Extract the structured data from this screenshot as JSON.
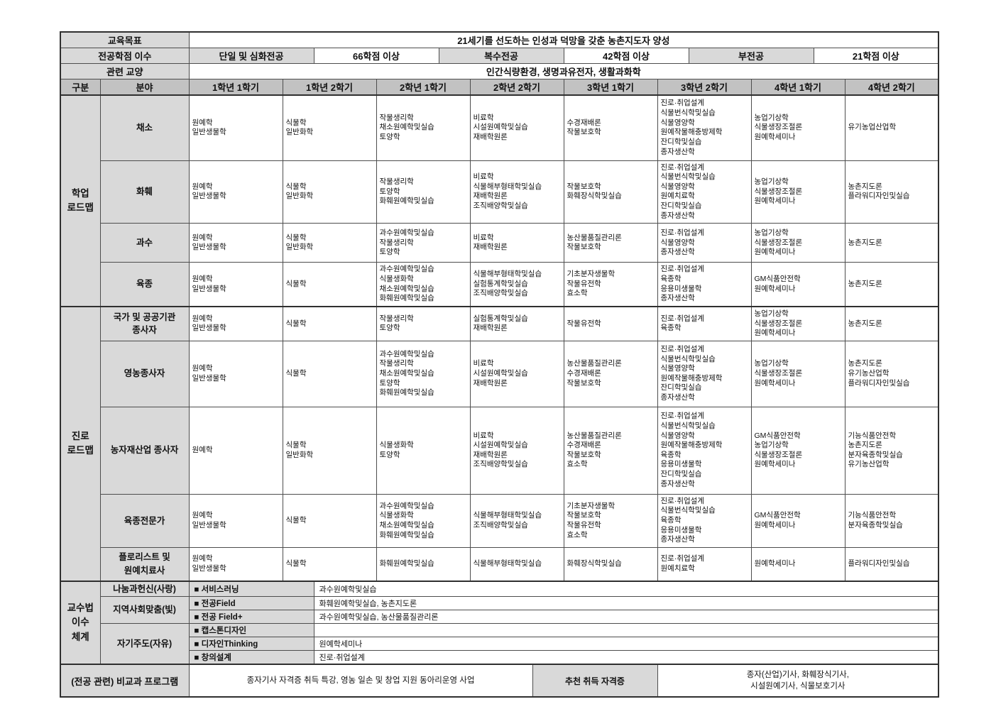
{
  "theme": {
    "label_bg": "#d9d9d9",
    "header_bg": "#c2c2c2",
    "border": "#4d4d4d",
    "text": "#111111"
  },
  "top": {
    "goal_label": "교육목표",
    "goal": "21세기를 선도하는 인성과 덕망을 갖춘 농촌지도자 양성",
    "credits_label": "전공학점 이수",
    "credits": [
      {
        "name": "단일 및 심화전공",
        "value": "66학점 이상"
      },
      {
        "name": "복수전공",
        "value": "42학점 이상"
      },
      {
        "name": "부전공",
        "value": "21학점 이상"
      }
    ],
    "liberal_label": "관련 교양",
    "liberal": "인간식량환경, 생명과유전자, 생활과화학"
  },
  "columns": {
    "gubun": "구분",
    "bunya": "분야",
    "semesters": [
      "1학년 1학기",
      "1학년 2학기",
      "2학년 1학기",
      "2학년 2학기",
      "3학년 1학기",
      "3학년 2학기",
      "4학년 1학기",
      "4학년 2학기"
    ]
  },
  "sections": [
    {
      "title": "학업 로드맵",
      "rows": [
        {
          "category": "채소",
          "cells": [
            [
              "원예학",
              "일반생물학"
            ],
            [
              "식물학",
              "일반화학"
            ],
            [
              "작물생리학",
              "채소원예학및실습",
              "토양학"
            ],
            [
              "비료학",
              "시설원예학및실습",
              "재배학원론"
            ],
            [
              "수경재배론",
              "작물보호학"
            ],
            [
              "진로·취업설계",
              "식물번식학및실습",
              "식물영양학",
              "원예작물해충방제학",
              "잔디학및실습",
              "종자생산학"
            ],
            [
              "농업기상학",
              "식물생장조절론",
              "원예학세미나"
            ],
            [
              "유기농업산업학"
            ]
          ]
        },
        {
          "category": "화훼",
          "cells": [
            [
              "원예학",
              "일반생물학"
            ],
            [
              "식물학",
              "일반화학"
            ],
            [
              "작물생리학",
              "토양학",
              "화훼원예학및실습"
            ],
            [
              "비료학",
              "식물해부형태학및실습",
              "재배학원론",
              "조직배양학및실습"
            ],
            [
              "작물보호학",
              "화훼장식학및실습"
            ],
            [
              "진로·취업설계",
              "식물번식학및실습",
              "식물영양학",
              "원예치료학",
              "잔디학및실습",
              "종자생산학"
            ],
            [
              "농업기상학",
              "식물생장조절론",
              "원예학세미나"
            ],
            [
              "농촌지도론",
              "플라워디자인및실습"
            ]
          ]
        },
        {
          "category": "과수",
          "cells": [
            [
              "원예학",
              "일반생물학"
            ],
            [
              "식물학",
              "일반화학"
            ],
            [
              "과수원예학및실습",
              "작물생리학",
              "토양학"
            ],
            [
              "비료학",
              "재배학원론"
            ],
            [
              "농산물품질관리론",
              "작물보호학"
            ],
            [
              "진로·취업설계",
              "식물영양학",
              "종자생산학"
            ],
            [
              "농업기상학",
              "식물생장조절론",
              "원예학세미나"
            ],
            [
              "농촌지도론"
            ]
          ]
        },
        {
          "category": "육종",
          "cells": [
            [
              "원예학",
              "일반생물학"
            ],
            [
              "식물학"
            ],
            [
              "과수원예학및실습",
              "식물생화학",
              "채소원예학및실습",
              "화훼원예학및실습"
            ],
            [
              "식물해부형태학및실습",
              "실험통계학및실습",
              "조직배양학및실습"
            ],
            [
              "기초분자생물학",
              "작물유전학",
              "효소학"
            ],
            [
              "진로·취업설계",
              "육종학",
              "응용미생물학",
              "종자생산학"
            ],
            [
              "GM식품안전학",
              "원예학세미나"
            ],
            [
              "농촌지도론"
            ]
          ]
        }
      ]
    },
    {
      "title": "진로 로드맵",
      "rows": [
        {
          "category": "국가 및 공공기관 종사자",
          "cells": [
            [
              "원예학",
              "일반생물학"
            ],
            [
              "식물학"
            ],
            [
              "작물생리학",
              "토양학"
            ],
            [
              "실험통계학및실습",
              "재배학원론"
            ],
            [
              "작물유전학"
            ],
            [
              "진로·취업설계",
              "육종학"
            ],
            [
              "농업기상학",
              "식물생장조절론",
              "원예학세미나"
            ],
            [
              "농촌지도론"
            ]
          ]
        },
        {
          "category": "영농종사자",
          "cells": [
            [
              "원예학",
              "일반생물학"
            ],
            [
              "식물학"
            ],
            [
              "과수원예학및실습",
              "작물생리학",
              "채소원예학및실습",
              "토양학",
              "화훼원예학및실습"
            ],
            [
              "비료학",
              "시설원예학및실습",
              "재배학원론"
            ],
            [
              "농산물품질관리론",
              "수경재배론",
              "작물보호학"
            ],
            [
              "진로·취업설계",
              "식물번식학및실습",
              "식물영양학",
              "원예작물해충방제학",
              "잔디학및실습",
              "종자생산학"
            ],
            [
              "농업기상학",
              "식물생장조절론",
              "원예학세미나"
            ],
            [
              "농촌지도론",
              "유기농산업학",
              "플라워디자인및실습"
            ]
          ]
        },
        {
          "category": "농자재산업 종사자",
          "cells": [
            [
              "원예학"
            ],
            [
              "식물학",
              "일반화학"
            ],
            [
              "식물생화학",
              "토양학"
            ],
            [
              "비료학",
              "시설원예학및실습",
              "재배학원론",
              "조직배양학및실습"
            ],
            [
              "농산물품질관리론",
              "수경재배론",
              "작물보호학",
              "효소학"
            ],
            [
              "진로·취업설계",
              "식물번식학및실습",
              "식물영양학",
              "원예작물해충방제학",
              "육종학",
              "응용미생물학",
              "잔디학및실습",
              "종자생산학"
            ],
            [
              "GM식품안전학",
              "농업기상학",
              "식물생장조절론",
              "원예학세미나"
            ],
            [
              "기능식품안전학",
              "농촌지도론",
              "분자육종학및실습",
              "유기농산업학"
            ]
          ]
        },
        {
          "category": "육종전문가",
          "cells": [
            [
              "원예학",
              "일반생물학"
            ],
            [
              "식물학"
            ],
            [
              "과수원예학및실습",
              "식물생화학",
              "채소원예학및실습",
              "화훼원예학및실습"
            ],
            [
              "식물해부형태학및실습",
              "조직배양학및실습"
            ],
            [
              "기초분자생물학",
              "작물보호학",
              "작물유전학",
              "효소학"
            ],
            [
              "진로·취업설계",
              "식물번식학및실습",
              "육종학",
              "응용미생물학",
              "종자생산학"
            ],
            [
              "GM식품안전학",
              "원예학세미나"
            ],
            [
              "기능식품안전학",
              "분자육종학및실습"
            ]
          ]
        },
        {
          "category": "플로리스트 및 원예치료사",
          "cells": [
            [
              "원예학",
              "일반생물학"
            ],
            [
              "식물학"
            ],
            [
              "화훼원예학및실습"
            ],
            [
              "식물해부형태학및실습"
            ],
            [
              "화훼장식학및실습"
            ],
            [
              "진로·취업설계",
              "원예치료학"
            ],
            [
              "원예학세미나"
            ],
            [
              "플라워디자인및실습"
            ]
          ]
        }
      ]
    }
  ],
  "teaching": {
    "title": "교수법 이수 체계",
    "bullet": "■",
    "groups": [
      {
        "label": "나눔과헌신(사랑)",
        "items": [
          {
            "method": "서비스러닝",
            "courses": "과수원예학및실습"
          }
        ]
      },
      {
        "label": "지역사회맞춤(빛)",
        "items": [
          {
            "method": "전공Field",
            "courses": "화훼원예학및실습, 농촌지도론"
          },
          {
            "method": "전공 Field+",
            "courses": "과수원예학및실습, 농산물품질관리론"
          }
        ]
      },
      {
        "label": "자기주도(자유)",
        "items": [
          {
            "method": "캡스톤디자인",
            "courses": ""
          },
          {
            "method": "디자인Thinking",
            "courses": "원예학세미나"
          },
          {
            "method": "창의설계",
            "courses": "진로·취업설계"
          }
        ]
      }
    ]
  },
  "extra": {
    "label": "(전공 관련) 비교과 프로그램",
    "program": "종자기사 자격증 취득 특강, 영농 일손 및 창업 지원 동아리운영 사업",
    "cert_label": "추천 취득 자격증",
    "cert_lines": [
      "종자(산업)기사, 화훼장식기사,",
      "시설원예기사, 식물보호기사"
    ]
  }
}
